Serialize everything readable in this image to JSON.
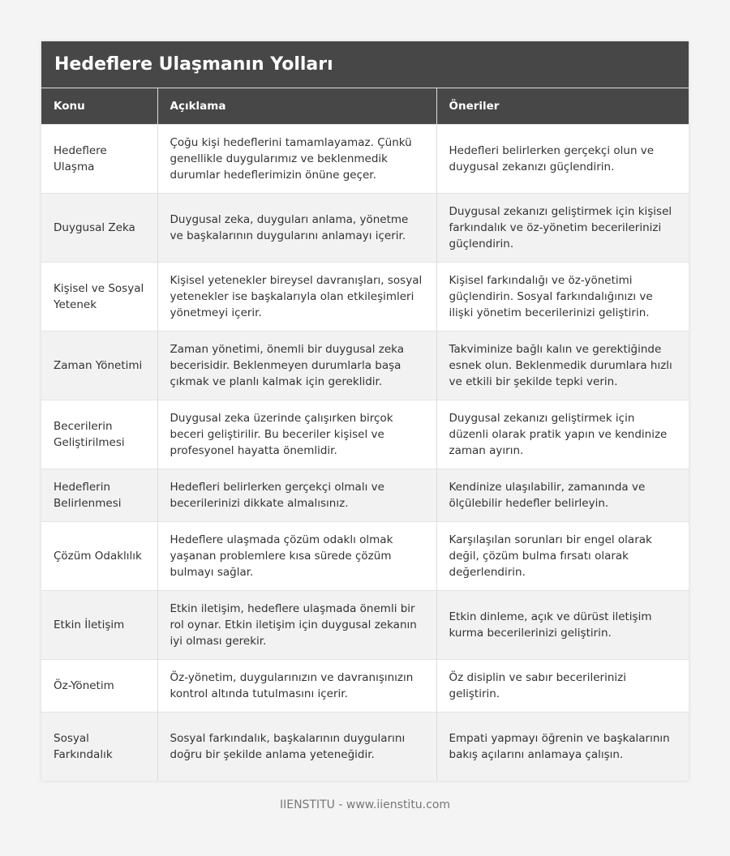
{
  "title": "Hedeflere Ulaşmanın Yolları",
  "columns": [
    "Konu",
    "Açıklama",
    "Öneriler"
  ],
  "rows": [
    [
      "Hedeflere Ulaşma",
      "Çoğu kişi hedeflerini tamamlayamaz. Çünkü genellikle duygularımız ve beklenmedik durumlar hedeflerimizin önüne geçer.",
      "Hedefleri belirlerken gerçekçi olun ve duygusal zekanızı güçlendirin."
    ],
    [
      "Duygusal Zeka",
      "Duygusal zeka, duyguları anlama, yönetme ve başkalarının duygularını anlamayı içerir.",
      "Duygusal zekanızı geliştirmek için kişisel farkındalık ve öz-yönetim becerilerinizi güçlendirin."
    ],
    [
      "Kişisel ve Sosyal Yetenek",
      "Kişisel yetenekler bireysel davranışları, sosyal yetenekler ise başkalarıyla olan etkileşimleri yönetmeyi içerir.",
      "Kişisel farkındalığı ve öz-yönetimi güçlendirin. Sosyal farkındalığınızı ve ilişki yönetim becerilerinizi geliştirin."
    ],
    [
      "Zaman Yönetimi",
      "Zaman yönetimi, önemli bir duygusal zeka becerisidir. Beklenmeyen durumlarla başa çıkmak ve planlı kalmak için gereklidir.",
      "Takviminize bağlı kalın ve gerektiğinde esnek olun. Beklenmedik durumlara hızlı ve etkili bir şekilde tepki verin."
    ],
    [
      "Becerilerin Geliştirilmesi",
      "Duygusal zeka üzerinde çalışırken birçok beceri geliştirilir. Bu beceriler kişisel ve profesyonel hayatta önemlidir.",
      "Duygusal zekanızı geliştirmek için düzenli olarak pratik yapın ve kendinize zaman ayırın."
    ],
    [
      "Hedeflerin Belirlenmesi",
      "Hedefleri belirlerken gerçekçi olmalı ve becerilerinizi dikkate almalısınız.",
      "Kendinize ulaşılabilir, zamanında ve ölçülebilir hedefler belirleyin."
    ],
    [
      "Çözüm Odaklılık",
      "Hedeflere ulaşmada çözüm odaklı olmak yaşanan problemlere kısa sürede çözüm bulmayı sağlar.",
      "Karşılaşılan sorunları bir engel olarak değil, çözüm bulma fırsatı olarak değerlendirin."
    ],
    [
      "Etkin İletişim",
      "Etkin iletişim, hedeflere ulaşmada önemli bir rol oynar. Etkin iletişim için duygusal zekanın iyi olması gerekir.",
      "Etkin dinleme, açık ve dürüst iletişim kurma becerilerinizi geliştirin."
    ],
    [
      "Öz-Yönetim",
      "Öz-yönetim, duygularınızın ve davranışınızın kontrol altında tutulmasını içerir.",
      "Öz disiplin ve sabır becerilerinizi geliştirin."
    ],
    [
      "Sosyal Farkındalık",
      "Sosyal farkındalık, başkalarının duygularını doğru bir şekilde anlama yeteneğidir.",
      "Empati yapmayı öğrenin ve başkalarının bakış açılarını anlamaya çalışın."
    ]
  ],
  "footer": "IIENSTITU - www.iienstitu.com"
}
